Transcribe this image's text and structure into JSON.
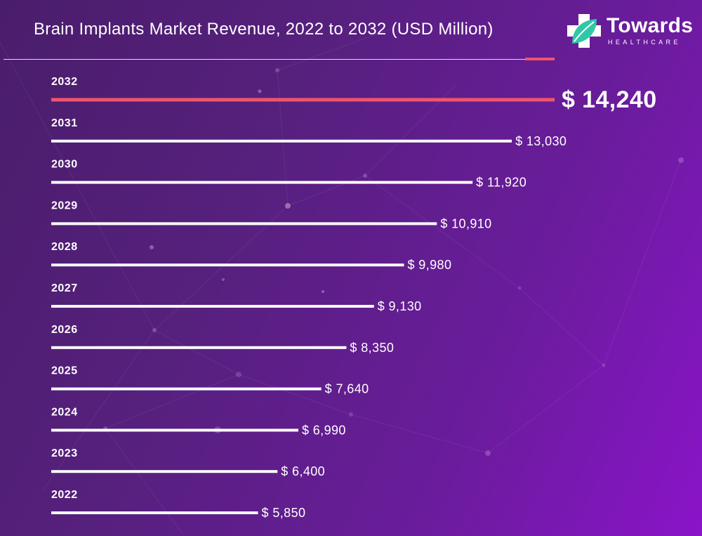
{
  "title": "Brain Implants Market Revenue, 2022 to 2032 (USD Million)",
  "brand": {
    "name": "Towards",
    "subtitle": "HEALTHCARE",
    "icon": "medical-cross-leaf-icon"
  },
  "colors": {
    "bar": "#ffffff",
    "highlight_bar": "#f0556b",
    "accent": "#f0556b",
    "logo_cross": "#ffffff",
    "logo_leaf": "#2ec8a8"
  },
  "chart_data": {
    "type": "bar",
    "orientation": "horizontal",
    "title": "Brain Implants Market Revenue, 2022 to 2032 (USD Million)",
    "xlabel": "",
    "ylabel": "",
    "value_prefix": "$ ",
    "highlight": "2032",
    "grid": false,
    "xlim": [
      0,
      14240
    ],
    "categories": [
      "2032",
      "2031",
      "2030",
      "2029",
      "2028",
      "2027",
      "2026",
      "2025",
      "2024",
      "2023",
      "2022"
    ],
    "values": [
      14240,
      13030,
      11920,
      10910,
      9980,
      9130,
      8350,
      7640,
      6990,
      6400,
      5850
    ],
    "value_labels": [
      "$ 14,240",
      "$ 13,030",
      "$ 11,920",
      "$ 10,910",
      "$ 9,980",
      "$ 9,130",
      "$ 8,350",
      "$ 7,640",
      "$ 6,990",
      "$ 6,400",
      "$ 5,850"
    ]
  }
}
